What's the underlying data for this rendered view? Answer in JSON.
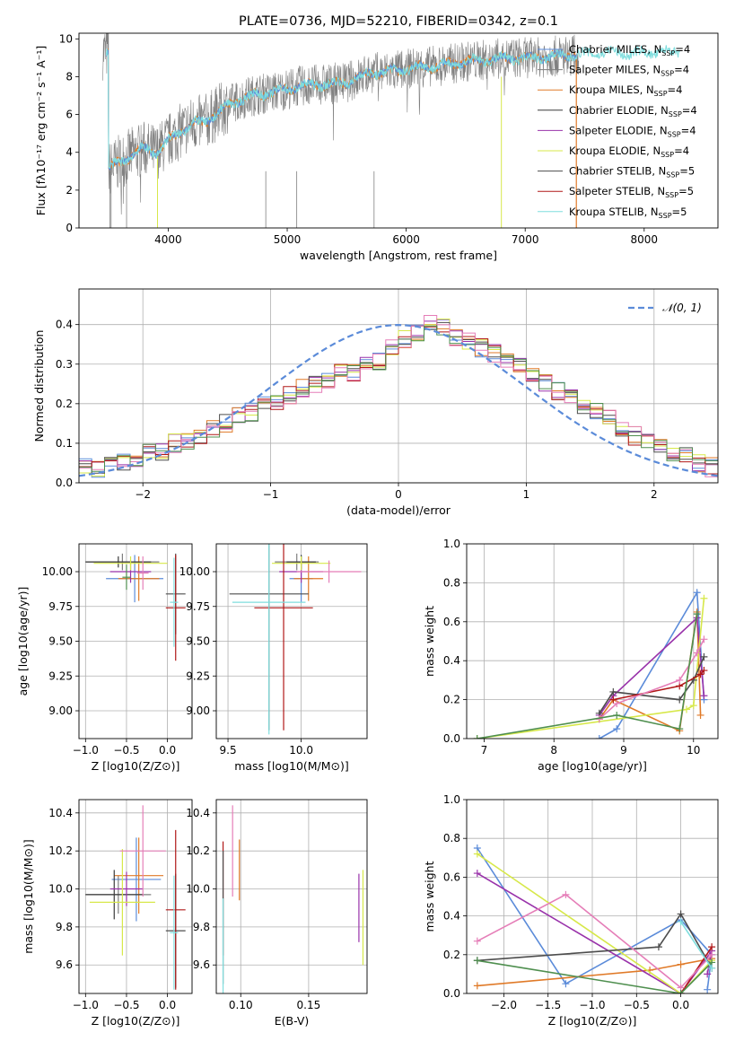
{
  "figure_title": "PLATE=0736, MJD=52210, FIBERID=0342, z=0.1",
  "colors": {
    "Chabrier MILES": "#5b8bd9",
    "Salpeter MILES": "#7f7f7f",
    "Kroupa MILES": "#e07a28",
    "Chabrier ELODIE": "#3a3a3a",
    "Salpeter ELODIE": "#9932aa",
    "Kroupa ELODIE": "#d7e84a",
    "Chabrier STELIB": "#4d4d4d",
    "Salpeter STELIB": "#b01818",
    "Kroupa STELIB": "#7fdede",
    "extra_pink": "#e57eb8",
    "extra_green": "#4f8f4f",
    "observed": "#808080",
    "normal": "#5b8bd9"
  },
  "chart_data": [
    {
      "id": "spectrum",
      "type": "line",
      "title": "PLATE=0736, MJD=52210, FIBERID=0342, z=0.1",
      "xlabel": "wavelength [Angstrom, rest frame]",
      "ylabel": "Flux [fλ10⁻¹⁷ erg cm⁻² s⁻¹ A⁻¹]",
      "xlim": [
        3250,
        8620
      ],
      "ylim": [
        0,
        10.3
      ],
      "xticks": [
        4000,
        5000,
        6000,
        7000,
        8000
      ],
      "yticks": [
        0,
        2,
        4,
        6,
        8,
        10
      ],
      "legend_position": "upper-right",
      "legend": [
        {
          "name": "Chabrier MILES",
          "sub": "SSP",
          "n": "4"
        },
        {
          "name": "Salpeter MILES",
          "sub": "SSP",
          "n": "4"
        },
        {
          "name": "Kroupa MILES",
          "sub": "SSP",
          "n": "4"
        },
        {
          "name": "Chabrier ELODIE",
          "sub": "SSP",
          "n": "4"
        },
        {
          "name": "Salpeter ELODIE",
          "sub": "SSP",
          "n": "4"
        },
        {
          "name": "Kroupa ELODIE",
          "sub": "SSP",
          "n": "4"
        },
        {
          "name": "Chabrier STELIB",
          "sub": "SSP",
          "n": "5"
        },
        {
          "name": "Salpeter STELIB",
          "sub": "SSP",
          "n": "5"
        },
        {
          "name": "Kroupa STELIB",
          "sub": "SSP",
          "n": "5"
        }
      ],
      "model_continuum": {
        "x": [
          3500,
          3600,
          3700,
          3800,
          3900,
          4000,
          4100,
          4200,
          4300,
          4400,
          4500,
          4700,
          4900,
          5100,
          5300,
          5500,
          5700,
          5900,
          6100,
          6300,
          6500,
          6700,
          6900,
          7100,
          7300,
          7500,
          7700,
          7900,
          8100,
          8300
        ],
        "y": [
          3.1,
          3.5,
          3.9,
          4.2,
          4.0,
          4.6,
          5.1,
          5.5,
          5.6,
          6.0,
          6.5,
          7.0,
          7.2,
          7.5,
          7.6,
          7.7,
          8.2,
          8.3,
          8.5,
          8.6,
          8.8,
          8.9,
          9.0,
          9.0,
          9.1,
          9.2,
          9.3,
          9.2,
          9.3,
          9.3
        ]
      }
    },
    {
      "id": "residuals",
      "type": "histogram",
      "xlabel": "(data-model)/error",
      "ylabel": "Normed distribution",
      "xlim": [
        -2.5,
        2.5
      ],
      "ylim": [
        0,
        0.49
      ],
      "xticks": [
        -2,
        -1,
        0,
        1,
        2
      ],
      "yticks": [
        0.0,
        0.1,
        0.2,
        0.3,
        0.4
      ],
      "grid": true,
      "legend_position": "upper-right",
      "legend": [
        "𝒩(0, 1)"
      ],
      "bin_edges_start": -2.5,
      "bin_width": 0.1,
      "mean_values": [
        0.04,
        0.03,
        0.04,
        0.05,
        0.06,
        0.08,
        0.08,
        0.1,
        0.11,
        0.12,
        0.14,
        0.15,
        0.17,
        0.18,
        0.2,
        0.2,
        0.22,
        0.24,
        0.25,
        0.26,
        0.28,
        0.28,
        0.3,
        0.31,
        0.34,
        0.36,
        0.38,
        0.4,
        0.39,
        0.37,
        0.36,
        0.34,
        0.33,
        0.31,
        0.29,
        0.27,
        0.25,
        0.23,
        0.22,
        0.2,
        0.18,
        0.16,
        0.14,
        0.12,
        0.11,
        0.09,
        0.08,
        0.07,
        0.05,
        0.04
      ]
    },
    {
      "id": "age_vs_Z",
      "type": "scatter",
      "xlabel": "Z [log10(Z/Z⊙)]",
      "ylabel": "age  [log10(age/yr)]",
      "xlim": [
        -1.08,
        0.3
      ],
      "ylim": [
        8.8,
        10.2
      ],
      "xticks": [
        -1.0,
        -0.5,
        0.0
      ],
      "yticks": [
        9.0,
        9.25,
        9.5,
        9.75,
        10.0
      ],
      "grid": true,
      "points": [
        {
          "x": -0.4,
          "y": 9.95,
          "xerr": 0.35,
          "yerr": 0.17,
          "series": "Chabrier MILES"
        },
        {
          "x": -0.55,
          "y": 10.07,
          "xerr": 0.45,
          "yerr": 0.06,
          "series": "Salpeter MILES"
        },
        {
          "x": -0.35,
          "y": 9.95,
          "xerr": 0.25,
          "yerr": 0.16,
          "series": "Kroupa MILES"
        },
        {
          "x": -0.6,
          "y": 10.07,
          "xerr": 0.4,
          "yerr": 0.04,
          "series": "Chabrier ELODIE"
        },
        {
          "x": -0.45,
          "y": 10.0,
          "xerr": 0.25,
          "yerr": 0.08,
          "series": "Salpeter ELODIE"
        },
        {
          "x": -0.45,
          "y": 10.06,
          "xerr": 0.45,
          "yerr": 0.05,
          "series": "Kroupa ELODIE"
        },
        {
          "x": 0.1,
          "y": 9.84,
          "xerr": 0.12,
          "yerr": 0.29,
          "series": "Chabrier STELIB"
        },
        {
          "x": 0.1,
          "y": 9.74,
          "xerr": 0.12,
          "yerr": 0.38,
          "series": "Salpeter STELIB"
        },
        {
          "x": 0.08,
          "y": 9.78,
          "xerr": 0.05,
          "yerr": 0.32,
          "series": "Kroupa STELIB"
        },
        {
          "x": -0.3,
          "y": 9.99,
          "xerr": 0.07,
          "yerr": 0.12,
          "series": "extra_pink"
        },
        {
          "x": -0.5,
          "y": 9.96,
          "xerr": 0.05,
          "yerr": 0.09,
          "series": "extra_green"
        }
      ]
    },
    {
      "id": "age_vs_mass",
      "type": "scatter",
      "xlabel": "mass [log10(M/M⊙)]",
      "ylim": [
        8.8,
        10.2
      ],
      "xlim": [
        9.42,
        10.45
      ],
      "xticks": [
        9.5,
        10.0
      ],
      "yticks": [
        9.0,
        9.25,
        9.5,
        9.75,
        10.0
      ],
      "grid": true,
      "points": [
        {
          "x": 10.0,
          "y": 9.95,
          "xerr": 0.08,
          "yerr": 0.17,
          "series": "Chabrier MILES"
        },
        {
          "x": 9.97,
          "y": 10.07,
          "xerr": 0.15,
          "yerr": 0.06,
          "series": "Salpeter MILES"
        },
        {
          "x": 10.05,
          "y": 9.95,
          "xerr": 0.1,
          "yerr": 0.16,
          "series": "Kroupa MILES"
        },
        {
          "x": 10.0,
          "y": 10.07,
          "xerr": 0.1,
          "yerr": 0.05,
          "series": "Chabrier ELODIE"
        },
        {
          "x": 10.0,
          "y": 10.0,
          "xerr": 0.15,
          "yerr": 0.08,
          "series": "Salpeter ELODIE"
        },
        {
          "x": 10.0,
          "y": 10.06,
          "xerr": 0.2,
          "yerr": 0.05,
          "series": "Kroupa ELODIE"
        },
        {
          "x": 9.78,
          "y": 9.84,
          "xerr": 0.27,
          "yerr": 0.98,
          "series": "Chabrier STELIB"
        },
        {
          "x": 9.88,
          "y": 9.74,
          "xerr": 0.2,
          "yerr": 0.88,
          "series": "Salpeter STELIB"
        },
        {
          "x": 9.78,
          "y": 9.78,
          "xerr": 0.25,
          "yerr": 0.95,
          "series": "Kroupa STELIB"
        },
        {
          "x": 10.19,
          "y": 10.0,
          "xerr": 0.22,
          "yerr": 0.08,
          "series": "extra_pink"
        }
      ]
    },
    {
      "id": "massweight_vs_age",
      "type": "line",
      "xlabel": "age  [log10(age/yr)]",
      "ylabel": "mass weight",
      "xlim": [
        6.75,
        10.35
      ],
      "ylim": [
        0,
        1.0
      ],
      "xticks": [
        7,
        8,
        9,
        10
      ],
      "yticks": [
        0.0,
        0.2,
        0.4,
        0.6,
        0.8,
        1.0
      ],
      "grid": true,
      "series": [
        {
          "name": "Chabrier MILES",
          "x": [
            8.65,
            8.9,
            10.05,
            10.15
          ],
          "y": [
            0.0,
            0.05,
            0.75,
            0.2
          ]
        },
        {
          "name": "Kroupa MILES",
          "x": [
            8.65,
            8.85,
            9.8,
            10.05,
            10.1
          ],
          "y": [
            0.1,
            0.2,
            0.04,
            0.65,
            0.12
          ]
        },
        {
          "name": "Salpeter ELODIE",
          "x": [
            8.65,
            8.85,
            10.05,
            10.15
          ],
          "y": [
            0.12,
            0.22,
            0.62,
            0.22
          ]
        },
        {
          "name": "Kroupa ELODIE",
          "x": [
            6.9,
            9.9,
            10.0,
            10.15
          ],
          "y": [
            0.0,
            0.15,
            0.17,
            0.72
          ]
        },
        {
          "name": "Chabrier STELIB",
          "x": [
            8.65,
            8.85,
            9.8,
            10.0,
            10.15
          ],
          "y": [
            0.13,
            0.24,
            0.2,
            0.3,
            0.42
          ]
        },
        {
          "name": "Salpeter STELIB",
          "x": [
            8.85,
            9.8,
            10.1,
            10.15
          ],
          "y": [
            0.2,
            0.27,
            0.33,
            0.35
          ]
        },
        {
          "name": "extra_pink",
          "x": [
            8.65,
            8.9,
            9.8,
            10.05,
            10.15
          ],
          "y": [
            0.1,
            0.18,
            0.3,
            0.44,
            0.51
          ]
        },
        {
          "name": "extra_green",
          "x": [
            6.9,
            8.9,
            9.8,
            10.05
          ],
          "y": [
            0.0,
            0.12,
            0.05,
            0.64
          ]
        }
      ]
    },
    {
      "id": "mass_vs_Z",
      "type": "scatter",
      "xlabel": "Z [log10(Z/Z⊙)]",
      "ylabel": "mass [log10(M/M⊙)]",
      "xlim": [
        -1.08,
        0.3
      ],
      "ylim": [
        9.45,
        10.47
      ],
      "xticks": [
        -1.0,
        -0.5,
        0.0
      ],
      "yticks": [
        9.6,
        9.8,
        10.0,
        10.2,
        10.4
      ],
      "grid": true,
      "points": [
        {
          "x": -0.38,
          "y": 10.05,
          "xerr": 0.3,
          "yerr": 0.22,
          "series": "Chabrier MILES"
        },
        {
          "x": -0.6,
          "y": 9.97,
          "xerr": 0.4,
          "yerr": 0.1,
          "series": "Salpeter MILES"
        },
        {
          "x": -0.35,
          "y": 10.07,
          "xerr": 0.3,
          "yerr": 0.2,
          "series": "Kroupa MILES"
        },
        {
          "x": -0.65,
          "y": 9.97,
          "xerr": 0.35,
          "yerr": 0.13,
          "series": "Chabrier ELODIE"
        },
        {
          "x": -0.5,
          "y": 10.0,
          "xerr": 0.2,
          "yerr": 0.09,
          "series": "Salpeter ELODIE"
        },
        {
          "x": -0.55,
          "y": 9.93,
          "xerr": 0.4,
          "yerr": 0.28,
          "series": "Kroupa ELODIE"
        },
        {
          "x": 0.1,
          "y": 9.78,
          "xerr": 0.12,
          "yerr": 0.3,
          "series": "Chabrier STELIB"
        },
        {
          "x": 0.1,
          "y": 9.89,
          "xerr": 0.12,
          "yerr": 0.42,
          "series": "Salpeter STELIB"
        },
        {
          "x": 0.08,
          "y": 9.77,
          "xerr": 0.05,
          "yerr": 0.3,
          "series": "Kroupa STELIB"
        },
        {
          "x": -0.3,
          "y": 10.2,
          "xerr": 0.28,
          "yerr": 0.24,
          "series": "extra_pink"
        }
      ]
    },
    {
      "id": "mass_vs_ebv",
      "type": "scatter",
      "xlabel": "E(B-V)",
      "xlim": [
        0.082,
        0.193
      ],
      "ylim": [
        9.45,
        10.47
      ],
      "xticks": [
        0.1,
        0.15
      ],
      "yticks": [
        9.6,
        9.8,
        10.0,
        10.2,
        10.4
      ],
      "grid": true,
      "points": [
        {
          "x": 0.087,
          "y": 9.95,
          "yerr": 0.3,
          "series": "Salpeter STELIB"
        },
        {
          "x": 0.087,
          "y": 9.85,
          "yerr": 0.35,
          "series": "Chabrier STELIB"
        },
        {
          "x": 0.087,
          "y": 9.7,
          "yerr": 0.25,
          "series": "Kroupa STELIB"
        },
        {
          "x": 0.094,
          "y": 10.2,
          "yerr": 0.24,
          "series": "extra_pink"
        },
        {
          "x": 0.099,
          "y": 10.1,
          "yerr": 0.16,
          "series": "Kroupa MILES"
        },
        {
          "x": 0.187,
          "y": 9.9,
          "yerr": 0.18,
          "series": "Salpeter ELODIE"
        },
        {
          "x": 0.19,
          "y": 9.85,
          "yerr": 0.25,
          "series": "Kroupa ELODIE"
        }
      ]
    },
    {
      "id": "massweight_vs_Z",
      "type": "line",
      "xlabel": "Z [log10(Z/Z⊙)]",
      "ylabel": "mass weight",
      "xlim": [
        -2.42,
        0.42
      ],
      "ylim": [
        0,
        1.0
      ],
      "xticks": [
        -2.0,
        -1.5,
        -1.0,
        -0.5,
        0.0
      ],
      "yticks": [
        0.0,
        0.2,
        0.4,
        0.6,
        0.8,
        1.0
      ],
      "grid": true,
      "series": [
        {
          "name": "Chabrier MILES",
          "x": [
            -2.3,
            -1.3,
            0.0,
            0.35,
            0.3
          ],
          "y": [
            0.75,
            0.05,
            0.38,
            0.2,
            0.02
          ]
        },
        {
          "name": "Kroupa MILES",
          "x": [
            -2.3,
            -0.35,
            0.0,
            0.35
          ],
          "y": [
            0.04,
            0.12,
            0.15,
            0.18
          ]
        },
        {
          "name": "Salpeter ELODIE",
          "x": [
            -2.3,
            0.0,
            0.35,
            0.3
          ],
          "y": [
            0.62,
            0.0,
            0.22,
            0.1
          ]
        },
        {
          "name": "Kroupa ELODIE",
          "x": [
            -2.3,
            0.0,
            0.35
          ],
          "y": [
            0.72,
            0.0,
            0.17
          ]
        },
        {
          "name": "Chabrier STELIB",
          "x": [
            -2.3,
            -0.25,
            0.0,
            0.35
          ],
          "y": [
            0.17,
            0.24,
            0.41,
            0.13
          ]
        },
        {
          "name": "Salpeter STELIB",
          "x": [
            0.0,
            0.35
          ],
          "y": [
            0.0,
            0.24
          ]
        },
        {
          "name": "extra_pink",
          "x": [
            -2.3,
            -1.3,
            0.0,
            0.35
          ],
          "y": [
            0.27,
            0.51,
            0.03,
            0.2
          ]
        },
        {
          "name": "extra_green",
          "x": [
            -2.3,
            0.0,
            0.35
          ],
          "y": [
            0.17,
            0.0,
            0.16
          ]
        },
        {
          "name": "Kroupa STELIB",
          "x": [
            0.0,
            0.35
          ],
          "y": [
            0.37,
            0.13
          ]
        }
      ]
    }
  ]
}
